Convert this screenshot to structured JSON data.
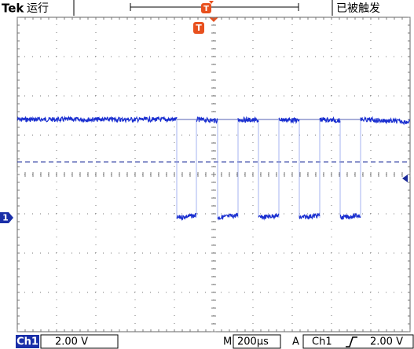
{
  "header": {
    "brand": "Tek",
    "status": "运行",
    "trigger_state": "已被触发"
  },
  "markers": {
    "trigger": "T",
    "channel": "1"
  },
  "footer": {
    "channel": "Ch1",
    "volts_per_div": "2.00 V",
    "time_label": "M",
    "time_per_div": "200µs",
    "trigger_label": "A",
    "trigger_source": "Ch1",
    "trigger_level": "2.00 V"
  }
}
